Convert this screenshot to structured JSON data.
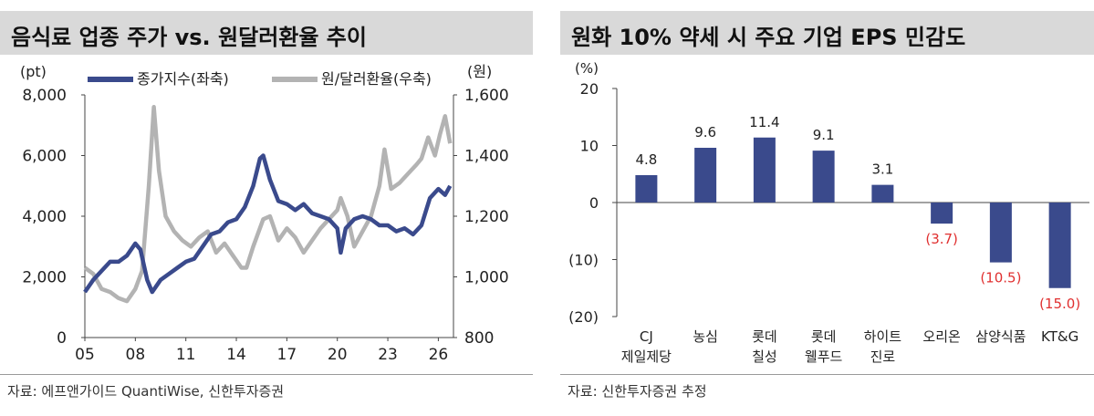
{
  "left_panel": {
    "title": "음식료 업종 주가 vs. 원달러환율 추이",
    "source": "자료: 에프앤가이드 QuantiWise, 신한투자증권"
  },
  "right_panel": {
    "title": "원화 10% 약세 시 주요 기업 EPS 민감도",
    "source": "자료: 신한투자증권 추정"
  },
  "chart_data": [
    {
      "type": "line",
      "title": "음식료 업종 주가 vs. 원달러환율 추이",
      "x_tick_labels": [
        "05",
        "08",
        "11",
        "14",
        "17",
        "20",
        "23",
        "26"
      ],
      "x_range": [
        2005,
        2026.9
      ],
      "y_left": {
        "unit": "(pt)",
        "range": [
          0,
          8000
        ],
        "ticks": [
          "0",
          "2,000",
          "4,000",
          "6,000",
          "8,000"
        ],
        "tick_values": [
          0,
          2000,
          4000,
          6000,
          8000
        ]
      },
      "y_right": {
        "unit": "(원)",
        "range": [
          800,
          1600
        ],
        "ticks": [
          "800",
          "1,000",
          "1,200",
          "1,400",
          "1,600"
        ],
        "tick_values": [
          800,
          1000,
          1200,
          1400,
          1600
        ]
      },
      "legend_placement": "top",
      "series": [
        {
          "name": "종가지수(좌축)",
          "axis": "left",
          "color": "#3a4a8c",
          "x": [
            2005.0,
            2005.5,
            2006.0,
            2006.5,
            2007.0,
            2007.5,
            2008.0,
            2008.3,
            2008.7,
            2009.0,
            2009.5,
            2010.0,
            2010.5,
            2011.0,
            2011.5,
            2012.0,
            2012.5,
            2013.0,
            2013.5,
            2014.0,
            2014.5,
            2015.0,
            2015.4,
            2015.6,
            2016.0,
            2016.5,
            2017.0,
            2017.5,
            2018.0,
            2018.5,
            2019.0,
            2019.5,
            2020.0,
            2020.2,
            2020.5,
            2021.0,
            2021.5,
            2022.0,
            2022.5,
            2023.0,
            2023.5,
            2024.0,
            2024.5,
            2025.0,
            2025.5,
            2026.0,
            2026.4,
            2026.7
          ],
          "values": [
            1500,
            1900,
            2200,
            2500,
            2500,
            2700,
            3100,
            2900,
            1900,
            1500,
            1900,
            2100,
            2300,
            2500,
            2600,
            3000,
            3400,
            3500,
            3800,
            3900,
            4300,
            5000,
            5900,
            6000,
            5200,
            4500,
            4400,
            4200,
            4400,
            4100,
            4000,
            3900,
            3600,
            2800,
            3600,
            3900,
            4000,
            3900,
            3700,
            3700,
            3500,
            3600,
            3400,
            3700,
            4600,
            4900,
            4700,
            5000
          ]
        },
        {
          "name": "원/달러환율(우축)",
          "axis": "right",
          "color": "#b3b3b3",
          "x": [
            2005.0,
            2005.5,
            2006.0,
            2006.5,
            2007.0,
            2007.5,
            2008.0,
            2008.4,
            2008.8,
            2009.1,
            2009.4,
            2009.8,
            2010.3,
            2010.8,
            2011.3,
            2011.8,
            2012.3,
            2012.8,
            2013.3,
            2013.8,
            2014.3,
            2014.6,
            2015.0,
            2015.6,
            2016.0,
            2016.5,
            2017.0,
            2017.5,
            2018.0,
            2018.5,
            2019.0,
            2019.5,
            2020.0,
            2020.2,
            2020.6,
            2021.0,
            2021.5,
            2022.0,
            2022.5,
            2022.8,
            2023.2,
            2023.7,
            2024.2,
            2024.7,
            2025.0,
            2025.4,
            2025.8,
            2026.1,
            2026.4,
            2026.7
          ],
          "values": [
            1030,
            1010,
            960,
            950,
            930,
            920,
            960,
            1020,
            1300,
            1560,
            1350,
            1200,
            1150,
            1120,
            1100,
            1130,
            1150,
            1080,
            1110,
            1070,
            1030,
            1030,
            1100,
            1190,
            1200,
            1120,
            1160,
            1130,
            1080,
            1120,
            1160,
            1190,
            1220,
            1260,
            1200,
            1100,
            1150,
            1200,
            1300,
            1420,
            1290,
            1310,
            1340,
            1370,
            1390,
            1460,
            1400,
            1470,
            1530,
            1440
          ]
        }
      ]
    },
    {
      "type": "bar",
      "title": "원화 10% 약세 시 주요 기업 EPS 민감도",
      "y_unit": "(%)",
      "ylim": [
        -20,
        20
      ],
      "y_ticks": [
        "20",
        "10",
        "0",
        "(10)",
        "(20)"
      ],
      "y_tick_values": [
        20,
        10,
        0,
        -10,
        -20
      ],
      "categories": [
        [
          "CJ",
          "제일제당"
        ],
        [
          "농심"
        ],
        [
          "롯데",
          "칠성"
        ],
        [
          "롯데",
          "웰푸드"
        ],
        [
          "하이트",
          "진로"
        ],
        [
          "오리온"
        ],
        [
          "삼양식품"
        ],
        [
          "KT&G"
        ]
      ],
      "values": [
        4.8,
        9.6,
        11.4,
        9.1,
        3.1,
        -3.7,
        -10.5,
        -15.0
      ],
      "data_labels": [
        "4.8",
        "9.6",
        "11.4",
        "9.1",
        "3.1",
        "(3.7)",
        "(10.5)",
        "(15.0)"
      ],
      "bar_color": "#3a4a8c",
      "negative_label_color": "#e03030",
      "grid": false
    }
  ]
}
